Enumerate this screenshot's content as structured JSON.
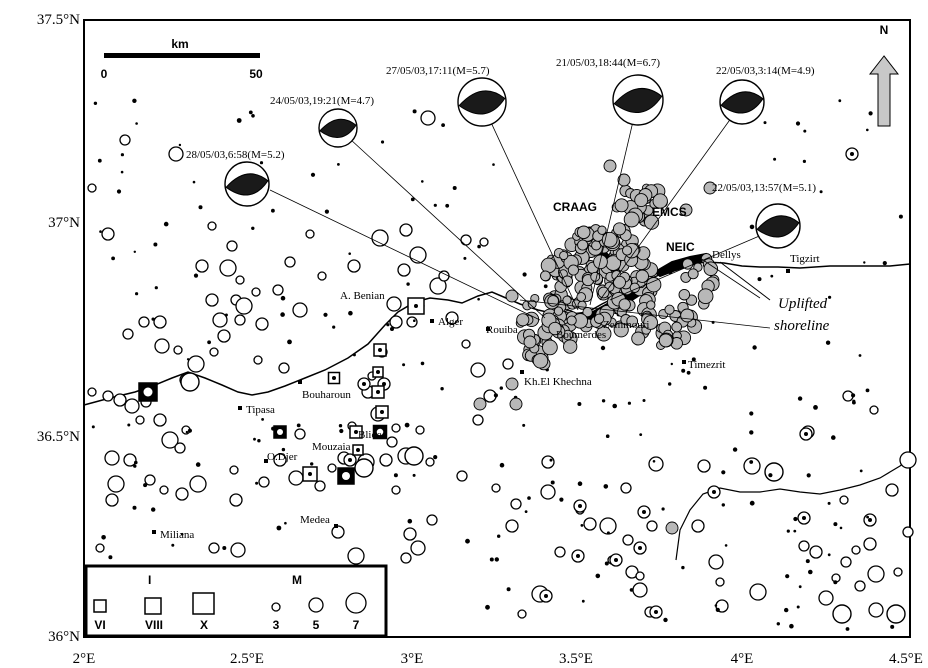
{
  "axes": {
    "lat_labels": [
      "37.5°N",
      "37°N",
      "36.5°N",
      "36°N"
    ],
    "lon_labels": [
      "2°E",
      "2.5°E",
      "3°E",
      "3.5°E",
      "4°E",
      "4.5°E"
    ]
  },
  "scale": {
    "unit": "km",
    "start": "0",
    "end": "50"
  },
  "north": {
    "label": "N"
  },
  "events": [
    {
      "label": "28/05/03,6:58(M=5.2)"
    },
    {
      "label": "24/05/03,19:21(M=4.7)"
    },
    {
      "label": "27/05/03,17:11(M=5.7)"
    },
    {
      "label": "21/05/03,18:44(M=6.7)"
    },
    {
      "label": "22/05/03,3:14(M=4.9)"
    },
    {
      "label": "22/05/03,13:57(M=5.1)"
    }
  ],
  "agencies": [
    "CRAAG",
    "EMCS",
    "NEIC"
  ],
  "places": [
    "A. Benian",
    "Alger",
    "Rouiba",
    "Boumerdes",
    "Zemmouri",
    "Dellys",
    "Tigzirt",
    "Timezrit",
    "Kh.El Khechna",
    "Bouharoun",
    "Tipasa",
    "O.Djer",
    "Mouzaia",
    "Blida",
    "Medea",
    "Miliana"
  ],
  "annotation": {
    "line1": "Uplifted",
    "line2": "shoreline"
  },
  "legend": {
    "intensity_title": "I",
    "intensity_labels": [
      "VI",
      "VIII",
      "X"
    ],
    "magnitude_title": "M",
    "magnitude_labels": [
      "3",
      "5",
      "7"
    ]
  },
  "colors": {
    "epicenter_fill": "#b8b8b8",
    "mechanism_fill": "#1a1a1a",
    "arrow_fill": "#c8c8c8"
  }
}
